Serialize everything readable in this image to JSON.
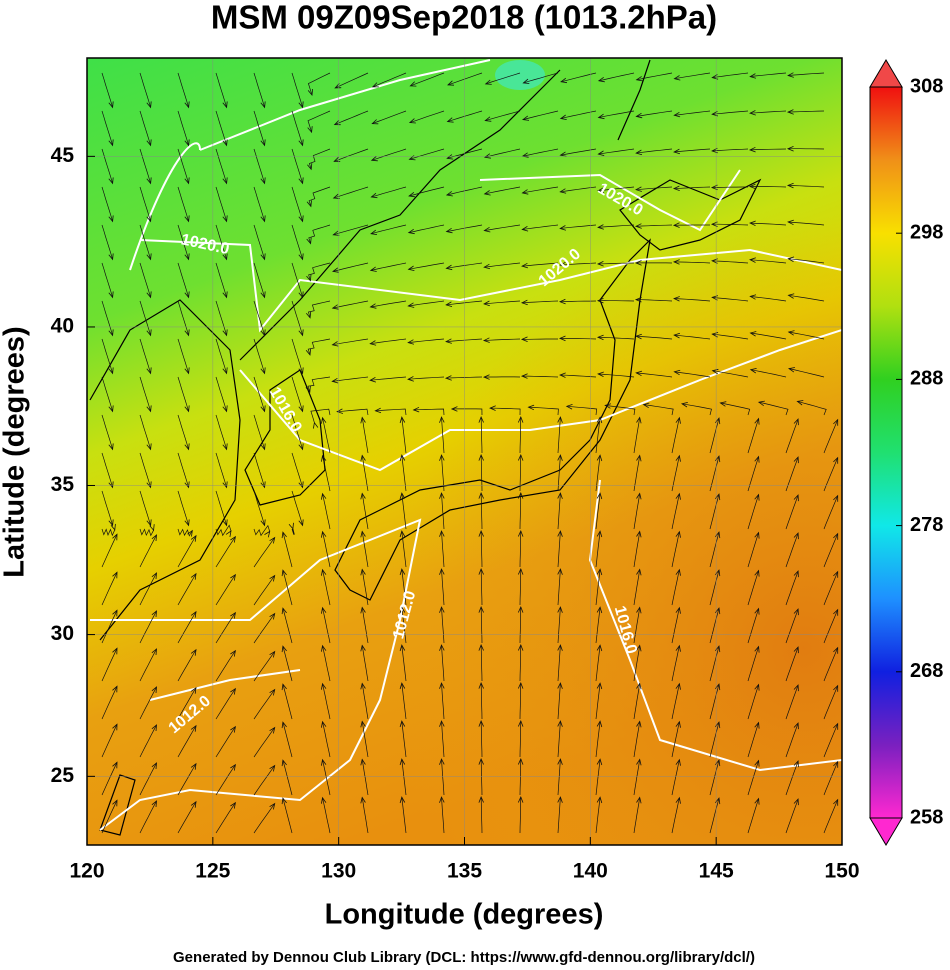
{
  "title": "MSM 09Z09Sep2018 (1013.2hPa)",
  "x_axis": {
    "label": "Longitude (degrees)",
    "lim": [
      120,
      150
    ],
    "ticks": [
      120,
      125,
      130,
      135,
      140,
      145,
      150
    ]
  },
  "y_axis": {
    "label": "Latitude  (degrees)",
    "lim": [
      22.5,
      47.7
    ],
    "ticks": [
      25,
      30,
      35,
      40,
      45
    ]
  },
  "colorbar": {
    "lim": [
      258,
      308
    ],
    "ticks": [
      258,
      268,
      278,
      288,
      298,
      308
    ]
  },
  "contour_labels": [
    "1020.0",
    "1020.0",
    "1020.0",
    "1016.0",
    "1016.0",
    "1012.0",
    "1012.0"
  ],
  "footer": "Generated by Dennou Club Library (DCL: https://www.gfd-dennou.org/library/dcl/)"
}
